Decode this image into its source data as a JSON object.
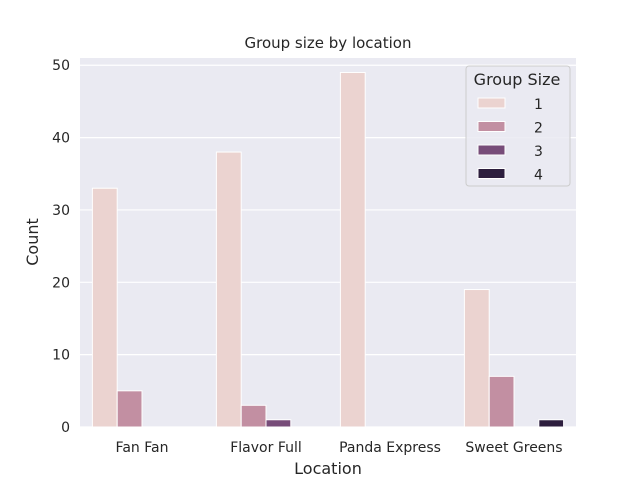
{
  "chart_data": {
    "type": "bar",
    "title": "Group size by location",
    "xlabel": "Location",
    "ylabel": "Count",
    "categories": [
      "Fan Fan",
      "Flavor Full",
      "Panda Express",
      "Sweet Greens"
    ],
    "series": [
      {
        "name": "1",
        "color": "#ebd3d0",
        "values": [
          33,
          38,
          49,
          19
        ]
      },
      {
        "name": "2",
        "color": "#c28fa2",
        "values": [
          5,
          3,
          0,
          7
        ]
      },
      {
        "name": "3",
        "color": "#774c79",
        "values": [
          0,
          1,
          0,
          0
        ]
      },
      {
        "name": "4",
        "color": "#2d1e3e",
        "values": [
          0,
          0,
          0,
          1
        ]
      }
    ],
    "ylim": [
      0,
      51
    ],
    "yticks": [
      0,
      10,
      20,
      30,
      40,
      50
    ],
    "grid": true,
    "legend": {
      "title": "Group Size",
      "position": "top-right"
    }
  }
}
